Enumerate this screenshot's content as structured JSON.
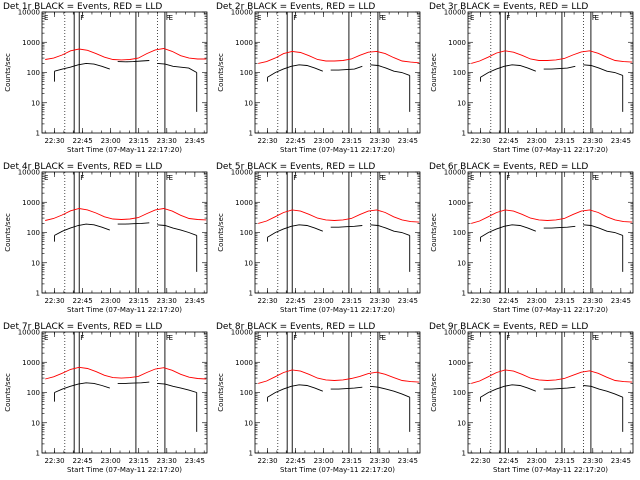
{
  "chart_data": {
    "type": "line",
    "yscale": "log",
    "ylim": [
      1,
      10000
    ],
    "y_ticks": [
      "1",
      "10",
      "100",
      "1000",
      "10000"
    ],
    "x_ticks": [
      "22:30",
      "22:45",
      "23:00",
      "23:15",
      "23:30",
      "23:45"
    ],
    "xlabel": "Start Time (07-May-11 22:17:20)",
    "ylabel": "Counts/sec",
    "colors": {
      "events": "#000000",
      "lld": "#ff0000"
    },
    "marker_labels": [
      "F",
      "E"
    ],
    "panels": [
      {
        "title": "Det 1r BLACK = Events, RED = LLD",
        "lld": [
          270,
          300,
          380,
          520,
          600,
          540,
          420,
          320,
          270,
          260,
          270,
          300,
          420,
          560,
          620,
          500,
          360,
          300,
          280,
          280
        ],
        "events": [
          110,
          130,
          150,
          180,
          200,
          190,
          160,
          130,
          230,
          225,
          230,
          240,
          250,
          200,
          190,
          160,
          150,
          140,
          100
        ]
      },
      {
        "title": "Det 2r BLACK = Events, RED = LLD",
        "lld": [
          200,
          230,
          300,
          420,
          500,
          460,
          360,
          270,
          240,
          240,
          250,
          280,
          370,
          470,
          500,
          420,
          310,
          240,
          220,
          210
        ],
        "events": [
          70,
          100,
          130,
          160,
          180,
          170,
          140,
          110,
          120,
          120,
          125,
          130,
          160,
          180,
          170,
          140,
          110,
          100,
          80
        ]
      },
      {
        "title": "Det 3r BLACK = Events, RED = LLD",
        "lld": [
          200,
          240,
          320,
          440,
          520,
          470,
          370,
          280,
          250,
          250,
          260,
          290,
          380,
          480,
          520,
          430,
          320,
          250,
          230,
          220
        ],
        "events": [
          70,
          100,
          130,
          160,
          180,
          170,
          140,
          110,
          130,
          130,
          135,
          140,
          160,
          180,
          170,
          140,
          110,
          100,
          80
        ]
      },
      {
        "title": "Det 4r BLACK = Events, RED = LLD",
        "lld": [
          250,
          290,
          380,
          520,
          620,
          560,
          440,
          330,
          280,
          270,
          280,
          310,
          420,
          560,
          620,
          510,
          370,
          290,
          270,
          260
        ],
        "events": [
          80,
          110,
          140,
          170,
          190,
          180,
          150,
          120,
          190,
          190,
          195,
          200,
          210,
          180,
          170,
          140,
          120,
          100,
          80
        ]
      },
      {
        "title": "Det 5r BLACK = Events, RED = LLD",
        "lld": [
          200,
          240,
          330,
          460,
          560,
          510,
          400,
          300,
          260,
          250,
          260,
          290,
          390,
          510,
          560,
          460,
          330,
          260,
          230,
          220
        ],
        "events": [
          70,
          100,
          130,
          160,
          180,
          170,
          140,
          110,
          150,
          150,
          155,
          160,
          170,
          180,
          170,
          140,
          110,
          100,
          80
        ]
      },
      {
        "title": "Det 6r BLACK = Events, RED = LLD",
        "lld": [
          200,
          240,
          330,
          460,
          560,
          510,
          400,
          300,
          260,
          250,
          260,
          290,
          390,
          510,
          560,
          460,
          330,
          260,
          230,
          220
        ],
        "events": [
          70,
          100,
          130,
          160,
          180,
          170,
          140,
          110,
          140,
          140,
          145,
          150,
          160,
          180,
          170,
          140,
          110,
          100,
          80
        ]
      },
      {
        "title": "Det 7r BLACK = Events, RED = LLD",
        "lld": [
          280,
          330,
          430,
          580,
          680,
          620,
          490,
          370,
          310,
          300,
          310,
          340,
          460,
          600,
          660,
          540,
          400,
          320,
          290,
          280
        ],
        "events": [
          100,
          130,
          160,
          190,
          210,
          200,
          170,
          140,
          200,
          200,
          205,
          210,
          220,
          200,
          190,
          160,
          140,
          120,
          100
        ]
      },
      {
        "title": "Det 8r BLACK = Events, RED = LLD",
        "lld": [
          200,
          240,
          330,
          460,
          560,
          510,
          400,
          300,
          260,
          250,
          260,
          290,
          340,
          420,
          470,
          400,
          310,
          250,
          230,
          220
        ],
        "events": [
          70,
          100,
          130,
          160,
          180,
          170,
          140,
          110,
          130,
          130,
          135,
          140,
          150,
          160,
          150,
          130,
          110,
          90,
          70
        ]
      },
      {
        "title": "Det 9r BLACK = Events, RED = LLD",
        "lld": [
          200,
          240,
          330,
          460,
          560,
          510,
          400,
          300,
          260,
          250,
          260,
          290,
          370,
          470,
          520,
          430,
          320,
          250,
          230,
          220
        ],
        "events": [
          70,
          100,
          130,
          160,
          180,
          170,
          140,
          110,
          130,
          130,
          135,
          140,
          150,
          170,
          160,
          130,
          110,
          90,
          70
        ]
      }
    ]
  }
}
